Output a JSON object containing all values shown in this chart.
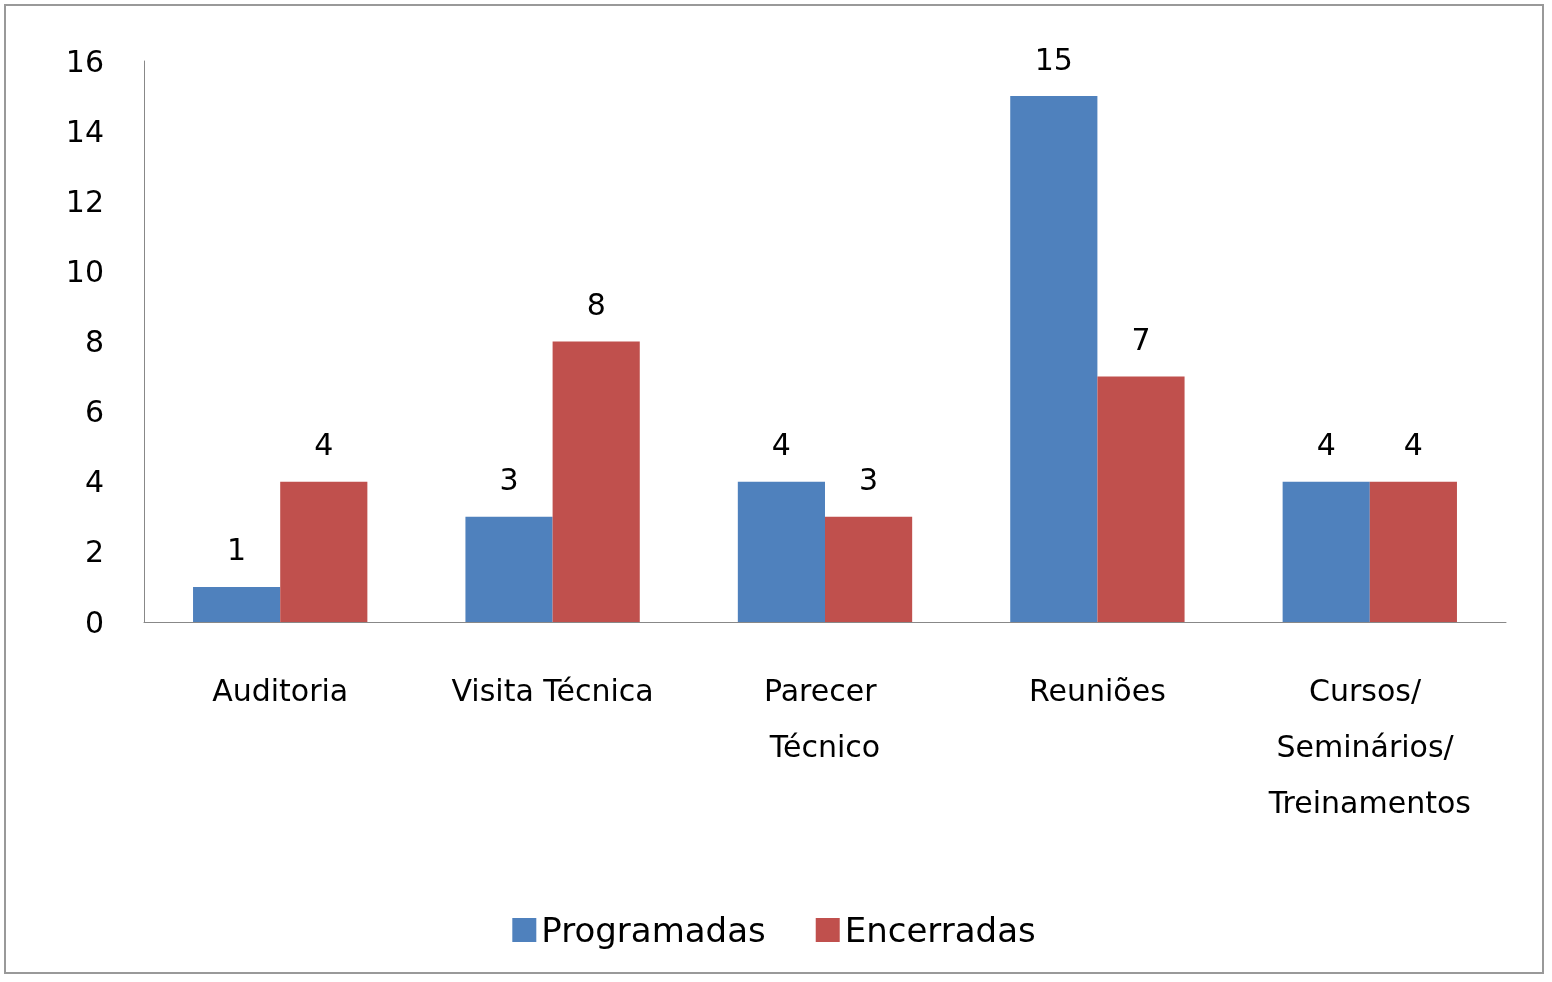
{
  "chart_data": {
    "type": "bar",
    "categories": [
      "Auditoria",
      "Visita Técnica",
      "Parecer Técnico",
      "Reuniões",
      "Cursos/ Seminários/ Treinamentos"
    ],
    "series": [
      {
        "name": "Programadas",
        "color": "#4f81bd",
        "values": [
          1,
          3,
          4,
          15,
          4
        ]
      },
      {
        "name": "Encerradas",
        "color": "#c0504d",
        "values": [
          4,
          8,
          3,
          7,
          4
        ]
      }
    ],
    "ylim": [
      0,
      16
    ],
    "yticks": [
      0,
      2,
      4,
      6,
      8,
      10,
      12,
      14,
      16
    ],
    "grid": false,
    "legend": "bottom",
    "data_labels": true
  }
}
